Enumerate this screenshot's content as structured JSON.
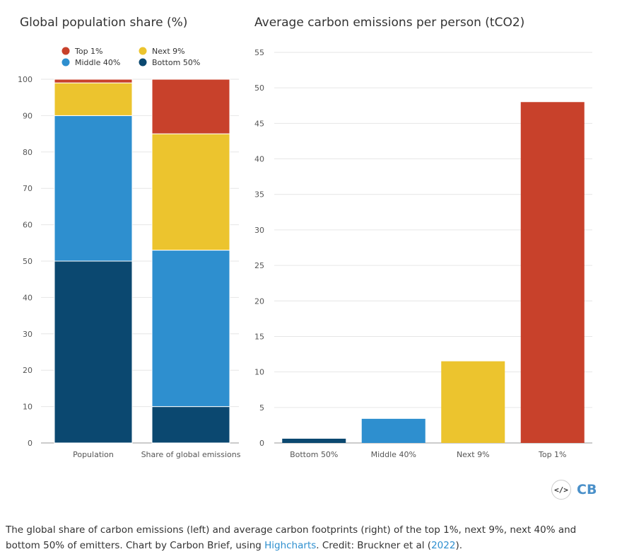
{
  "chart_data": [
    {
      "type": "bar",
      "stacked": true,
      "title": "Global population share (%)",
      "categories": [
        "Population",
        "Share of global emissions"
      ],
      "ylim": [
        0,
        100
      ],
      "yticks": [
        0,
        10,
        20,
        30,
        40,
        50,
        60,
        70,
        80,
        90,
        100
      ],
      "grid": true,
      "legend_position": "top-left",
      "series": [
        {
          "name": "Bottom 50%",
          "color": "#0b4870",
          "values": [
            50,
            10
          ]
        },
        {
          "name": "Middle 40%",
          "color": "#2e8fcf",
          "values": [
            40,
            43
          ]
        },
        {
          "name": "Next 9%",
          "color": "#ecc42e",
          "values": [
            9,
            32
          ]
        },
        {
          "name": "Top 1%",
          "color": "#c8412b",
          "values": [
            1,
            15
          ]
        }
      ]
    },
    {
      "type": "bar",
      "title": "Average carbon emissions per person (tCO2)",
      "categories": [
        "Bottom 50%",
        "Middle 40%",
        "Next 9%",
        "Top 1%"
      ],
      "values": [
        0.6,
        3.4,
        11.5,
        48
      ],
      "colors": [
        "#0b4870",
        "#2e8fcf",
        "#ecc42e",
        "#c8412b"
      ],
      "ylim": [
        0,
        55
      ],
      "yticks": [
        0,
        5,
        10,
        15,
        20,
        25,
        30,
        35,
        40,
        45,
        50,
        55
      ],
      "grid": true
    }
  ],
  "legend": [
    {
      "label": "Top 1%",
      "color": "#c8412b"
    },
    {
      "label": "Next 9%",
      "color": "#ecc42e"
    },
    {
      "label": "Middle 40%",
      "color": "#2e8fcf"
    },
    {
      "label": "Bottom 50%",
      "color": "#0b4870"
    }
  ],
  "logo": {
    "embed_label": "</>",
    "brand": "CB"
  },
  "caption": {
    "text_1": "The global share of carbon emissions (left) and average carbon footprints (right) of the top 1%, next 9%, next 40% and bottom 50% of emitters. Chart by Carbon Brief, using ",
    "link_1": "Highcharts",
    "text_2": ". Credit: Bruckner et al (",
    "link_2": "2022",
    "text_3": ")."
  }
}
